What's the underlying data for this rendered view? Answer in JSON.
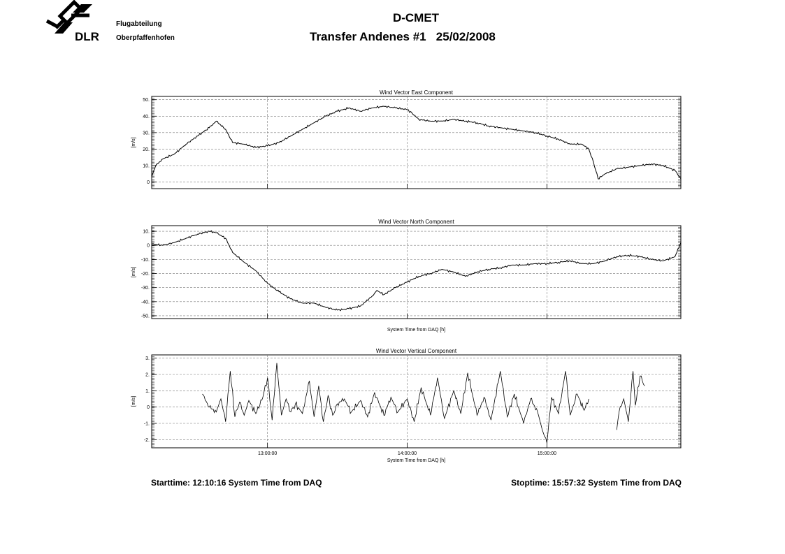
{
  "header": {
    "org_name": "DLR",
    "org_line1": "Flugabteilung",
    "org_line2": "Oberpfaffenhofen",
    "title": "D-CMET",
    "subtitle_left": "Transfer Andenes #1",
    "subtitle_date": "25/02/2008"
  },
  "footer": {
    "start": "Starttime: 12:10:16 System Time from DAQ",
    "stop": "Stoptime: 15:57:32 System Time from DAQ"
  },
  "chart_data": [
    {
      "type": "line",
      "title": "Wind Vector East Component",
      "ylabel": "[m/s]",
      "xlabel": "",
      "xlim": [
        "12:10:16",
        "15:57:32"
      ],
      "ylim": [
        -4,
        52
      ],
      "yticks": [
        0,
        10,
        20,
        30,
        40,
        50
      ],
      "ytick_labels": [
        "0",
        "10.",
        "20.",
        "30.",
        "40.",
        "50."
      ],
      "xticks": [
        "13:00:00",
        "14:00:00",
        "15:00:00"
      ],
      "show_xtick_labels": false,
      "grid": true,
      "series": [
        {
          "x": [
            "12:10:16",
            "12:12:00",
            "12:15:00",
            "12:20:00",
            "12:25:00",
            "12:30:00",
            "12:35:00",
            "12:38:00",
            "12:42:00",
            "12:45:00",
            "12:50:00",
            "12:55:00",
            "13:00:00",
            "13:05:00",
            "13:10:00",
            "13:15:00",
            "13:20:00",
            "13:25:00",
            "13:30:00",
            "13:35:00",
            "13:40:00",
            "13:45:00",
            "13:50:00",
            "13:55:00",
            "14:00:00",
            "14:02:00",
            "14:05:00",
            "14:10:00",
            "14:15:00",
            "14:20:00",
            "14:25:00",
            "14:30:00",
            "14:35:00",
            "14:40:00",
            "14:45:00",
            "14:50:00",
            "14:55:00",
            "15:00:00",
            "15:05:00",
            "15:10:00",
            "15:15:00",
            "15:18:00",
            "15:20:00",
            "15:22:00",
            "15:25:00",
            "15:30:00",
            "15:35:00",
            "15:40:00",
            "15:45:00",
            "15:50:00",
            "15:55:00",
            "15:57:32"
          ],
          "y": [
            3,
            10,
            14,
            17,
            23,
            28,
            33,
            37,
            32,
            24,
            23,
            21,
            22,
            24,
            28,
            32,
            36,
            40,
            43,
            45,
            43,
            45,
            46,
            45,
            44,
            42,
            38,
            37,
            37,
            38,
            37,
            36,
            34,
            33,
            32,
            31,
            30,
            28,
            26,
            23,
            23,
            20,
            12,
            2,
            5,
            8,
            9,
            10,
            11,
            10,
            7,
            2
          ]
        }
      ]
    },
    {
      "type": "line",
      "title": "Wind Vector North Component",
      "ylabel": "[m/s]",
      "xlabel": "System Time from DAQ [h]",
      "xlim": [
        "12:10:16",
        "15:57:32"
      ],
      "ylim": [
        -52,
        14
      ],
      "yticks": [
        10,
        0,
        -10,
        -20,
        -30,
        -40,
        -50
      ],
      "ytick_labels": [
        "10.",
        "0",
        "-10.",
        "-20.",
        "-30.",
        "-40.",
        "-50."
      ],
      "xticks": [
        "13:00:00",
        "14:00:00",
        "15:00:00"
      ],
      "show_xtick_labels": false,
      "grid": true,
      "series": [
        {
          "x": [
            "12:10:16",
            "12:15:00",
            "12:20:00",
            "12:25:00",
            "12:30:00",
            "12:35:00",
            "12:38:00",
            "12:42:00",
            "12:45:00",
            "12:50:00",
            "12:55:00",
            "13:00:00",
            "13:05:00",
            "13:10:00",
            "13:15:00",
            "13:20:00",
            "13:25:00",
            "13:30:00",
            "13:35:00",
            "13:40:00",
            "13:45:00",
            "13:47:00",
            "13:50:00",
            "13:55:00",
            "14:00:00",
            "14:05:00",
            "14:10:00",
            "14:15:00",
            "14:20:00",
            "14:25:00",
            "14:30:00",
            "14:35:00",
            "14:40:00",
            "14:45:00",
            "14:50:00",
            "14:55:00",
            "15:00:00",
            "15:05:00",
            "15:10:00",
            "15:15:00",
            "15:20:00",
            "15:25:00",
            "15:30:00",
            "15:35:00",
            "15:40:00",
            "15:45:00",
            "15:50:00",
            "15:55:00",
            "15:57:32"
          ],
          "y": [
            1,
            0,
            2,
            5,
            8,
            10,
            9,
            5,
            -5,
            -12,
            -18,
            -27,
            -33,
            -38,
            -41,
            -41,
            -44,
            -46,
            -45,
            -43,
            -36,
            -32,
            -35,
            -30,
            -26,
            -22,
            -20,
            -17,
            -19,
            -22,
            -19,
            -17,
            -16,
            -14,
            -14,
            -13,
            -13,
            -12,
            -11,
            -13,
            -13,
            -11,
            -8,
            -7,
            -8,
            -10,
            -11,
            -8,
            2
          ]
        }
      ]
    },
    {
      "type": "line",
      "title": "Wind Vector Vertical Component",
      "ylabel": "[m/s]",
      "xlabel": "System Time from DAQ [h]",
      "xlim": [
        "12:10:16",
        "15:57:32"
      ],
      "ylim": [
        -2.5,
        3.2
      ],
      "yticks": [
        3,
        2,
        1,
        0,
        -1,
        -2
      ],
      "ytick_labels": [
        "3.",
        "2.",
        "1.",
        "0",
        "-1.",
        "-2."
      ],
      "xticks": [
        "13:00:00",
        "14:00:00",
        "15:00:00"
      ],
      "show_xtick_labels": true,
      "grid": true,
      "series": [
        {
          "x": [
            "12:32:00",
            "12:35:00",
            "12:38:00",
            "12:40:00",
            "12:42:00",
            "12:44:00",
            "12:46:00",
            "12:48:00",
            "12:50:00",
            "12:52:00",
            "12:55:00",
            "12:58:00",
            "13:00:00",
            "13:02:00",
            "13:04:00",
            "13:06:00",
            "13:08:00",
            "13:10:00",
            "13:12:00",
            "13:15:00",
            "13:18:00",
            "13:20:00",
            "13:22:00",
            "13:24:00",
            "13:26:00",
            "13:28:00",
            "13:30:00",
            "13:33:00",
            "13:36:00",
            "13:40:00",
            "13:43:00",
            "13:46:00",
            "13:50:00",
            "13:53:00",
            "13:56:00",
            "14:00:00",
            "14:03:00",
            "14:06:00",
            "14:10:00",
            "14:13:00",
            "14:16:00",
            "14:20:00",
            "14:23:00",
            "14:26:00",
            "14:30:00",
            "14:33:00",
            "14:36:00",
            "14:40:00",
            "14:43:00",
            "14:46:00",
            "14:50:00",
            "14:53:00",
            "14:56:00",
            "14:58:00",
            "15:00:00",
            "15:02:00",
            "15:05:00",
            "15:08:00",
            "15:10:00",
            "15:13:00",
            "15:16:00",
            "15:18:00"
          ],
          "y": [
            0.8,
            0.0,
            -0.3,
            0.5,
            -0.9,
            2.2,
            -0.6,
            0.3,
            -0.5,
            0.4,
            -0.4,
            0.6,
            1.8,
            -0.8,
            2.7,
            -0.5,
            0.5,
            -0.3,
            0.2,
            -0.4,
            1.6,
            -0.6,
            1.3,
            -0.9,
            0.7,
            -0.5,
            0.2,
            0.5,
            -0.3,
            0.4,
            -0.6,
            0.9,
            -0.5,
            0.6,
            -0.3,
            0.5,
            -0.9,
            1.2,
            -0.5,
            1.8,
            -0.7,
            1.0,
            -0.4,
            2.1,
            -0.5,
            0.6,
            -0.8,
            2.2,
            -0.6,
            0.8,
            -1.0,
            0.5,
            -0.3,
            -1.4,
            -2.2,
            0.6,
            -0.4,
            2.2,
            -0.5,
            0.8,
            -0.2,
            0.5
          ]
        },
        {
          "x": [
            "15:30:00",
            "15:31:00",
            "15:33:00",
            "15:35:00",
            "15:37:00",
            "15:38:00",
            "15:40:00",
            "15:42:00"
          ],
          "y": [
            -1.4,
            -0.3,
            0.5,
            -0.9,
            2.2,
            0.1,
            1.9,
            1.3
          ]
        }
      ]
    }
  ]
}
